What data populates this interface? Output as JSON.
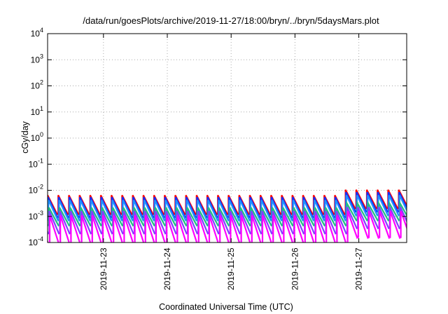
{
  "chart_data": {
    "type": "line",
    "title": "/data/run/goesPlots/archive/2019-11-27/18:00/bryn/../bryn/5daysMars.plot",
    "xlabel": "Coordinated Universal Time (UTC)",
    "ylabel": "cGy/day",
    "yscale": "log",
    "ylim": [
      0.0001,
      10000
    ],
    "y_ticks": [
      {
        "base": "10",
        "exp": "-4",
        "value": 0.0001
      },
      {
        "base": "10",
        "exp": "-3",
        "value": 0.001
      },
      {
        "base": "10",
        "exp": "-2",
        "value": 0.01
      },
      {
        "base": "10",
        "exp": "-1",
        "value": 0.1
      },
      {
        "base": "10",
        "exp": "0",
        "value": 1
      },
      {
        "base": "10",
        "exp": "1",
        "value": 10
      },
      {
        "base": "10",
        "exp": "2",
        "value": 100
      },
      {
        "base": "10",
        "exp": "3",
        "value": 1000
      },
      {
        "base": "10",
        "exp": "4",
        "value": 10000
      }
    ],
    "xlim": [
      "2019-11-22 03:00",
      "2019-11-27 18:00"
    ],
    "x_ticks": [
      "2019-11-23",
      "2019-11-24",
      "2019-11-25",
      "2019-11-26",
      "2019-11-27"
    ],
    "grid": true,
    "legend": "none",
    "sawtooth_period_hours": 4,
    "series": [
      {
        "color": "#ff0000",
        "peak": 0.0065,
        "trough": 0.0012,
        "late_peak": 0.0105,
        "late_trough": 0.002
      },
      {
        "color": "#1030ff",
        "peak": 0.0055,
        "trough": 0.0009,
        "late_peak": 0.0085,
        "late_trough": 0.0015
      },
      {
        "color": "#2090ff",
        "peak": 0.0042,
        "trough": 0.0007,
        "late_peak": 0.0065,
        "late_trough": 0.0011
      },
      {
        "color": "#20c080",
        "peak": 0.0022,
        "trough": 0.00045,
        "late_peak": 0.0032,
        "late_trough": 0.0007
      },
      {
        "color": "#8040ff",
        "peak": 0.0016,
        "trough": 0.00022,
        "late_peak": 0.0023,
        "late_trough": 0.00035
      },
      {
        "color": "#ff00ff",
        "peak": 0.0011,
        "trough": 8e-05,
        "late_peak": 0.0016,
        "late_trough": 0.00015
      }
    ],
    "series_change_at": "2019-11-26 16:00"
  }
}
